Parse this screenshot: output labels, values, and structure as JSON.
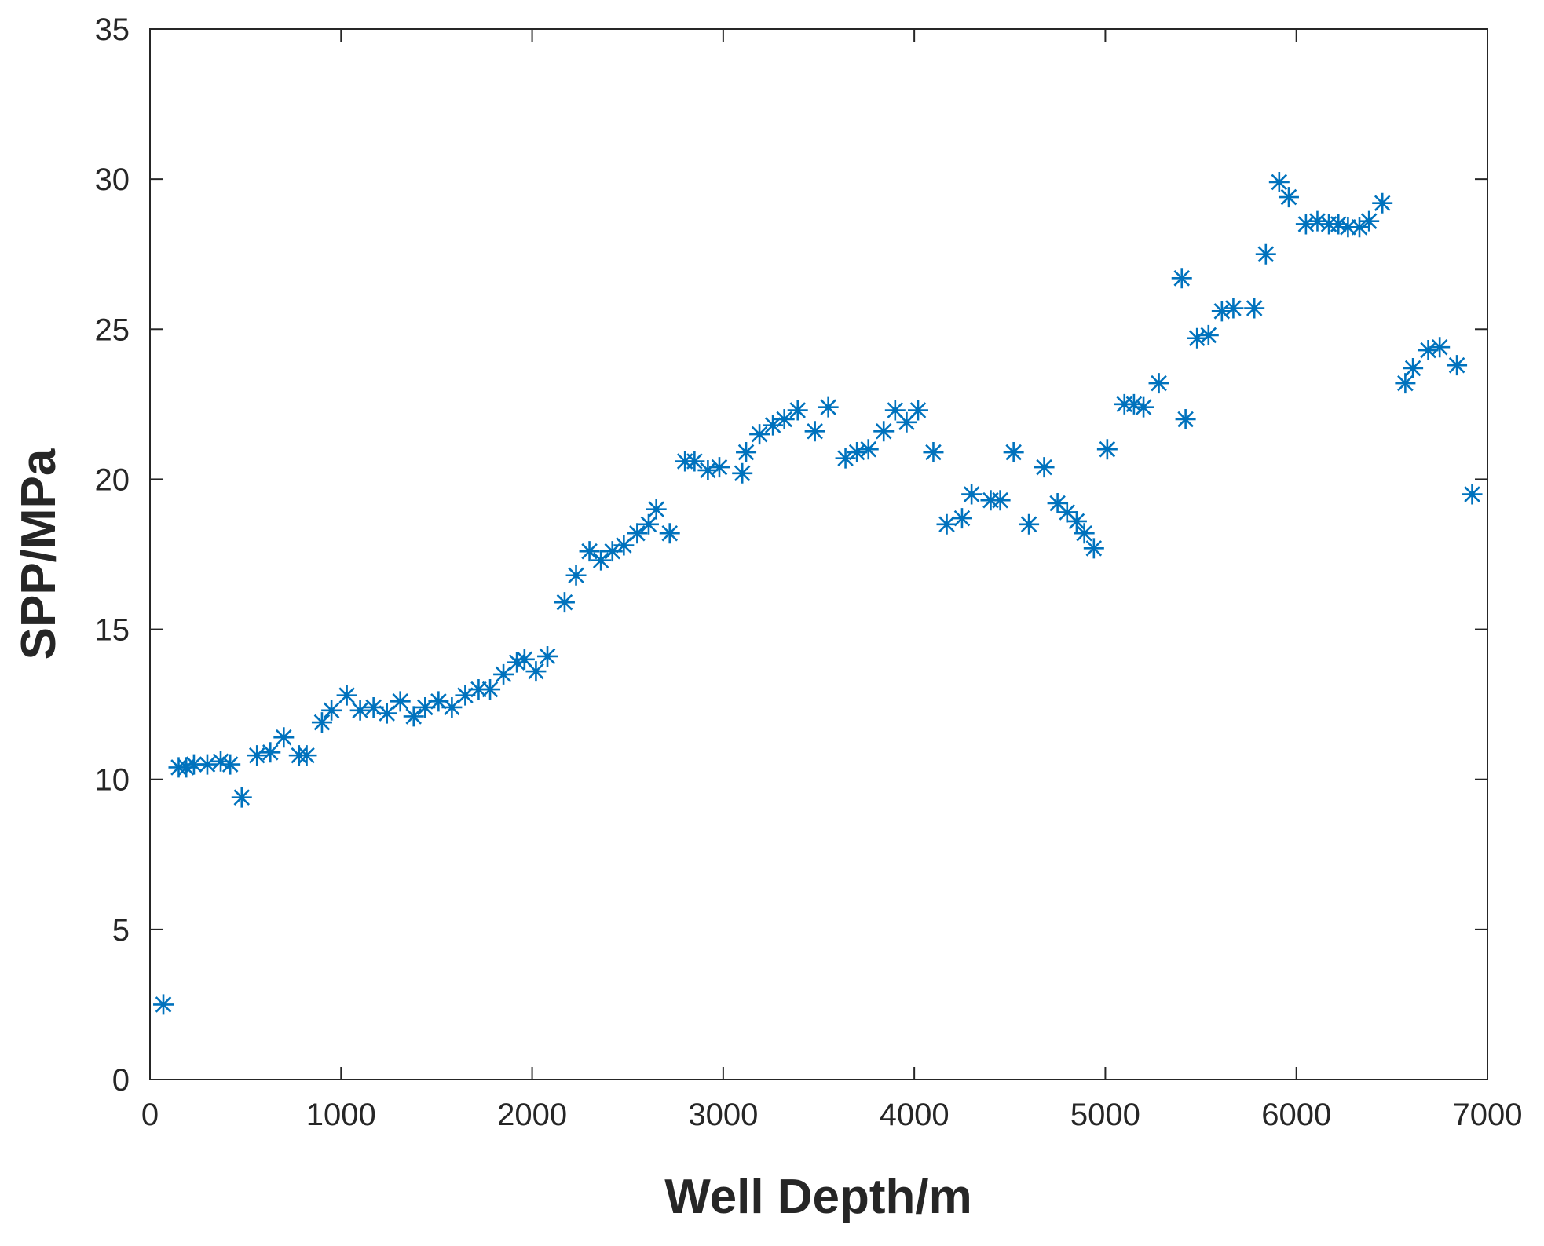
{
  "chart_data": {
    "type": "scatter",
    "title": "",
    "xlabel": "Well Depth/m",
    "ylabel": "SPP/MPa",
    "xlim": [
      0,
      7000
    ],
    "ylim": [
      0,
      35
    ],
    "xticks": [
      0,
      1000,
      2000,
      3000,
      4000,
      5000,
      6000,
      7000
    ],
    "yticks": [
      0,
      5,
      10,
      15,
      20,
      25,
      30,
      35
    ],
    "xtick_labels": [
      "0",
      "1000",
      "2000",
      "3000",
      "4000",
      "5000",
      "6000",
      "7000"
    ],
    "ytick_labels": [
      "0",
      "5",
      "10",
      "15",
      "20",
      "25",
      "30",
      "35"
    ],
    "grid": false,
    "marker": "asterisk",
    "marker_color": "#0072BD",
    "series": [
      {
        "x": [
          70,
          150,
          190,
          230,
          300,
          370,
          420,
          480,
          560,
          630,
          700,
          780,
          820,
          900,
          950,
          1030,
          1100,
          1170,
          1240,
          1310,
          1380,
          1440,
          1510,
          1580,
          1650,
          1720,
          1780,
          1850,
          1920,
          1960,
          2020,
          2080,
          2170,
          2230,
          2300,
          2360,
          2420,
          2480,
          2550,
          2610,
          2650,
          2720,
          2800,
          2850,
          2920,
          2980,
          3100,
          3120,
          3190,
          3260,
          3320,
          3390,
          3480,
          3550,
          3640,
          3700,
          3760,
          3840,
          3900,
          3960,
          4020,
          4100,
          4170,
          4250,
          4300,
          4400,
          4450,
          4520,
          4600,
          4680,
          4750,
          4800,
          4850,
          4890,
          4940,
          5010,
          5100,
          5150,
          5200,
          5280,
          5400,
          5420,
          5480,
          5540,
          5610,
          5670,
          5780,
          5840,
          5910,
          5960,
          6050,
          6110,
          6170,
          6220,
          6270,
          6330,
          6380,
          6450,
          6570,
          6610,
          6690,
          6750,
          6840,
          6920
        ],
        "y": [
          2.5,
          10.4,
          10.4,
          10.5,
          10.5,
          10.6,
          10.5,
          9.4,
          10.8,
          10.9,
          11.4,
          10.8,
          10.8,
          11.9,
          12.3,
          12.8,
          12.3,
          12.4,
          12.2,
          12.6,
          12.1,
          12.4,
          12.6,
          12.4,
          12.8,
          13.0,
          13.0,
          13.5,
          13.9,
          14.0,
          13.6,
          14.1,
          15.9,
          16.8,
          17.6,
          17.3,
          17.6,
          17.8,
          18.2,
          18.5,
          19.0,
          18.2,
          20.6,
          20.6,
          20.3,
          20.4,
          20.2,
          20.9,
          21.5,
          21.8,
          22.0,
          22.3,
          21.6,
          22.4,
          20.7,
          20.9,
          21.0,
          21.6,
          22.3,
          21.9,
          22.3,
          20.9,
          18.5,
          18.7,
          19.5,
          19.3,
          19.3,
          20.9,
          18.5,
          20.4,
          19.2,
          18.9,
          18.6,
          18.2,
          17.7,
          21.0,
          22.5,
          22.5,
          22.4,
          23.2,
          26.7,
          22.0,
          24.7,
          24.8,
          25.6,
          25.7,
          25.7,
          27.5,
          29.9,
          29.4,
          28.5,
          28.6,
          28.5,
          28.5,
          28.4,
          28.4,
          28.6,
          29.2,
          23.2,
          23.7,
          24.3,
          24.4,
          23.8,
          19.5
        ]
      }
    ]
  }
}
